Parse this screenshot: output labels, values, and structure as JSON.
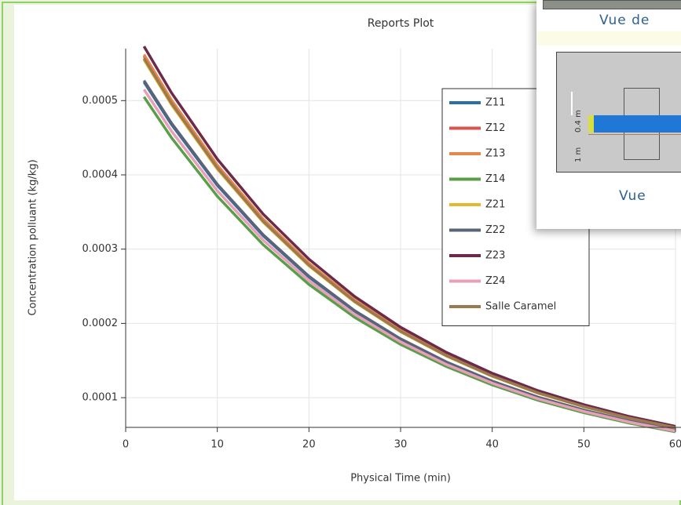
{
  "chart_data": {
    "type": "line",
    "title": "Reports Plot",
    "x_label": "Physical Time (min)",
    "y_label": "Concentration polluant (kg/kg)",
    "x": [
      2,
      5,
      10,
      15,
      20,
      25,
      30,
      35,
      40,
      45,
      50,
      55,
      60
    ],
    "series": [
      {
        "name": "Z11",
        "color": "#2a6fa8",
        "values": [
          0.000525,
          0.0004678,
          0.0003859,
          0.0003182,
          0.0002625,
          0.0002163,
          0.0001785,
          0.0001475,
          0.0001218,
          0.0001003,
          8.3e-05,
          6.83e-05,
          5.62e-05
        ]
      },
      {
        "name": "Z12",
        "color": "#d9534f",
        "values": [
          0.00056,
          0.000499,
          0.0004116,
          0.0003394,
          0.00028,
          0.0002307,
          0.0001904,
          0.0001574,
          0.0001299,
          0.000107,
          8.85e-05,
          7.28e-05,
          5.99e-05
        ]
      },
      {
        "name": "Z13",
        "color": "#e8864a",
        "values": [
          0.000562,
          0.0005007,
          0.0004131,
          0.0003406,
          0.000281,
          0.0002315,
          0.0001911,
          0.0001579,
          0.0001304,
          0.0001073,
          8.88e-05,
          7.31e-05,
          6.01e-05
        ]
      },
      {
        "name": "Z14",
        "color": "#5a9e4a",
        "values": [
          0.000505,
          0.00045,
          0.0003712,
          0.000306,
          0.0002525,
          0.0002081,
          0.0001717,
          0.0001419,
          0.0001172,
          9.65e-05,
          7.98e-05,
          6.57e-05,
          5.4e-05
        ]
      },
      {
        "name": "Z21",
        "color": "#e6b830",
        "values": [
          0.000555,
          0.0004945,
          0.0004079,
          0.0003363,
          0.0002775,
          0.0002287,
          0.0001887,
          0.000156,
          0.0001288,
          0.000106,
          8.77e-05,
          7.22e-05,
          5.94e-05
        ]
      },
      {
        "name": "Z22",
        "color": "#5a6478",
        "values": [
          0.000527,
          0.0004696,
          0.0003873,
          0.0003194,
          0.0002635,
          0.0002171,
          0.0001792,
          0.0001481,
          0.0001223,
          0.0001007,
          8.33e-05,
          6.85e-05,
          5.64e-05
        ]
      },
      {
        "name": "Z23",
        "color": "#6b2a4a",
        "values": [
          0.000573,
          0.0005105,
          0.0004212,
          0.0003472,
          0.0002865,
          0.0002361,
          0.0001948,
          0.000161,
          0.0001329,
          0.0001094,
          9.05e-05,
          7.45e-05,
          6.13e-05
        ]
      },
      {
        "name": "Z24",
        "color": "#e8a0b8",
        "values": [
          0.000515,
          0.0004589,
          0.0003785,
          0.0003121,
          0.0002575,
          0.0002122,
          0.0001751,
          0.0001447,
          0.0001195,
          9.84e-05,
          8.14e-05,
          6.7e-05,
          5.51e-05
        ]
      },
      {
        "name": "Salle Caramel",
        "color": "#9c7a50",
        "values": [
          0.000557,
          0.0004963,
          0.0004094,
          0.0003375,
          0.0002785,
          0.0002295,
          0.0001894,
          0.0001565,
          0.0001292,
          0.0001064,
          8.8e-05,
          7.24e-05,
          5.96e-05
        ]
      }
    ],
    "xlim": [
      0,
      60
    ],
    "xticks": [
      0,
      10,
      20,
      30,
      40,
      50,
      60
    ],
    "ylim": [
      6e-05,
      0.00057
    ],
    "yticks": [
      0.0001,
      0.0002,
      0.0003,
      0.0004,
      0.0005
    ],
    "grid": true,
    "legend": "upper right"
  },
  "overlay": {
    "caption_top": "Vue de",
    "caption_bottom": "Vue",
    "dim_labels": [
      "0.4 m",
      "1 m"
    ]
  }
}
